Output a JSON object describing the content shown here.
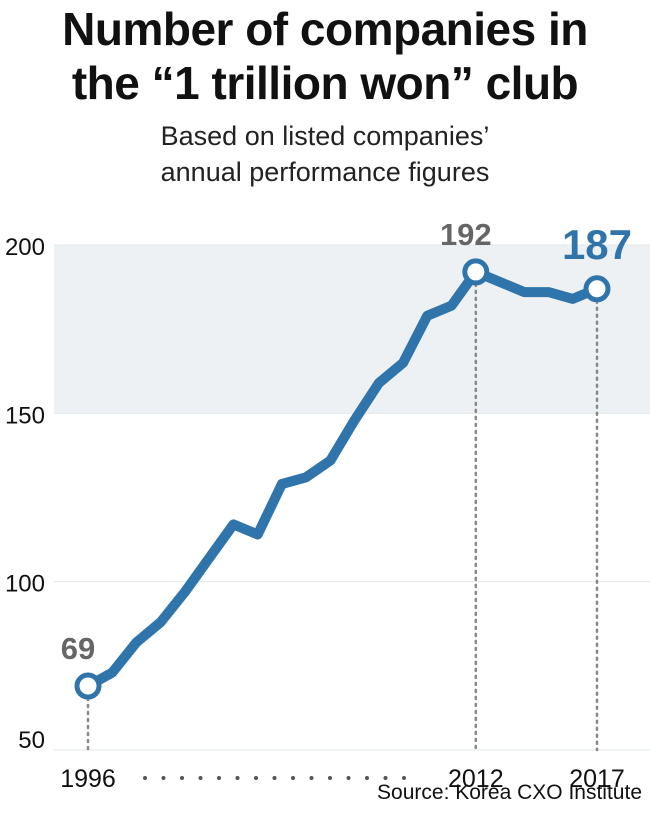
{
  "title": [
    "Number of companies in",
    "the “1 trillion won” club"
  ],
  "subtitle": [
    "Based on listed companies’",
    "annual performance figures"
  ],
  "source": "Source: Korea CXO Institute",
  "colors": {
    "line": "#2f74ab",
    "band": "#edf1f3",
    "highlight_label": "#2f74ab",
    "muted_label": "#666666",
    "dotted": "#888888"
  },
  "chart_data": {
    "type": "line",
    "title": "Number of companies in the “1 trillion won” club",
    "subtitle": "Based on listed companies’ annual performance figures",
    "x": [
      1996,
      1997,
      1998,
      1999,
      2000,
      2001,
      2002,
      2003,
      2004,
      2005,
      2006,
      2007,
      2008,
      2009,
      2010,
      2011,
      2012,
      2013,
      2014,
      2015,
      2016,
      2017
    ],
    "values": [
      69,
      73,
      82,
      88,
      97,
      107,
      117,
      114,
      129,
      131,
      136,
      148,
      159,
      165,
      179,
      182,
      192,
      189,
      186,
      186,
      184,
      187
    ],
    "ylim": [
      50,
      200
    ],
    "yticks": [
      "50",
      "100",
      "150",
      "200"
    ],
    "xticks": [
      "1996",
      "2012",
      "2017"
    ],
    "xlabel": "",
    "ylabel": "",
    "grid": "alternating bands",
    "annotations": [
      {
        "label": "69",
        "year": 1996,
        "value": 69,
        "style": "muted"
      },
      {
        "label": "192",
        "year": 2012,
        "value": 192,
        "style": "muted"
      },
      {
        "label": "187",
        "year": 2017,
        "value": 187,
        "style": "highlight"
      }
    ]
  }
}
